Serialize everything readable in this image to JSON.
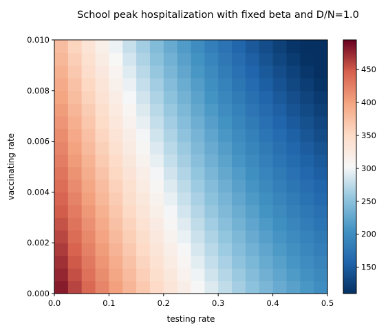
{
  "chart_data": {
    "type": "heatmap",
    "title": "School peak hospitalization with fixed beta and D/N=1.0",
    "xlabel": "testing rate",
    "ylabel": "vaccinating rate",
    "xlim": [
      0,
      0.5
    ],
    "ylim": [
      0,
      0.01
    ],
    "x_ticks": [
      "0.0",
      "0.1",
      "0.2",
      "0.3",
      "0.4",
      "0.5"
    ],
    "y_ticks": [
      "0.000",
      "0.002",
      "0.004",
      "0.006",
      "0.008",
      "0.010"
    ],
    "grid": false,
    "colormap": "RdBu_r",
    "grid_size": {
      "cols": 20,
      "rows": 20
    },
    "value_model": {
      "description": "approximate peak hospitalization read from colors",
      "formula": "value = 495 - 860*x - 11000*y + 540*x*x",
      "min_clamp": 110,
      "max_clamp": 495
    },
    "colorbar": {
      "range": [
        110,
        495
      ],
      "ticks": [
        "150",
        "200",
        "250",
        "300",
        "350",
        "400",
        "450"
      ],
      "tick_values": [
        150,
        200,
        250,
        300,
        350,
        400,
        450
      ]
    }
  }
}
